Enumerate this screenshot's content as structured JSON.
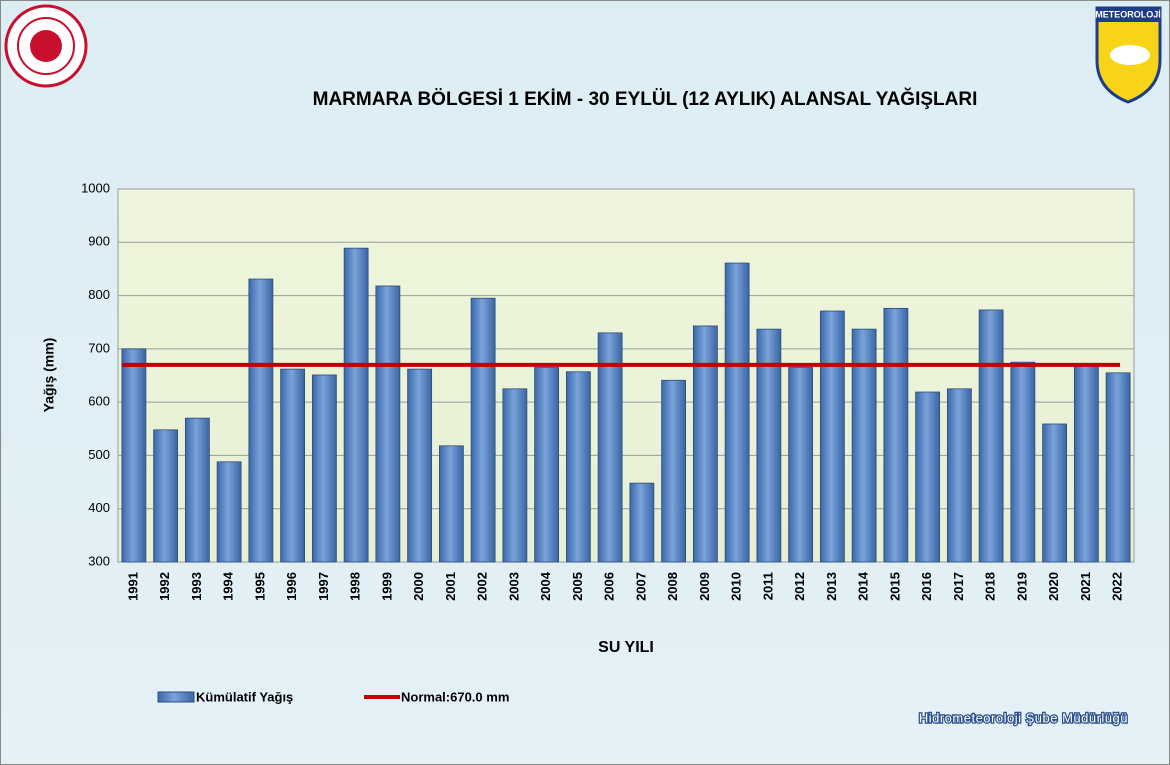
{
  "chart_data": {
    "type": "bar",
    "title": "MARMARA BÖLGESİ  1 EKİM - 30 EYLÜL (12 AYLIK) ALANSAL YAĞIŞLARI",
    "y_label": "Yağış (mm)",
    "x_label": "SU YILI",
    "logo_text": "METEOROLOJİ",
    "footer": "Hidrometeoroloji Şube Müdürlüğü",
    "categories": [
      "1991",
      "1992",
      "1993",
      "1994",
      "1995",
      "1996",
      "1997",
      "1998",
      "1999",
      "2000",
      "2001",
      "2002",
      "2003",
      "2004",
      "2005",
      "2006",
      "2007",
      "2008",
      "2009",
      "2010",
      "2011",
      "2012",
      "2013",
      "2014",
      "2015",
      "2016",
      "2017",
      "2018",
      "2019",
      "2020",
      "2021",
      "2022"
    ],
    "series": [
      {
        "name": "Kümülatif Yağış",
        "color": "#4f81bd",
        "values": [
          700,
          548,
          570,
          488,
          831,
          662,
          651,
          889,
          818,
          662,
          518,
          795,
          625,
          665,
          657,
          730,
          448,
          641,
          743,
          861,
          737,
          665,
          771,
          737,
          776,
          619,
          625,
          773,
          675,
          559,
          668,
          655
        ]
      },
      {
        "name": "Normal:670.0 mm",
        "color": "#c00000",
        "value": 670
      }
    ],
    "ylim": [
      300,
      1000
    ],
    "yticks": [
      300,
      400,
      500,
      600,
      700,
      800,
      900,
      1000
    ],
    "grid": true
  }
}
